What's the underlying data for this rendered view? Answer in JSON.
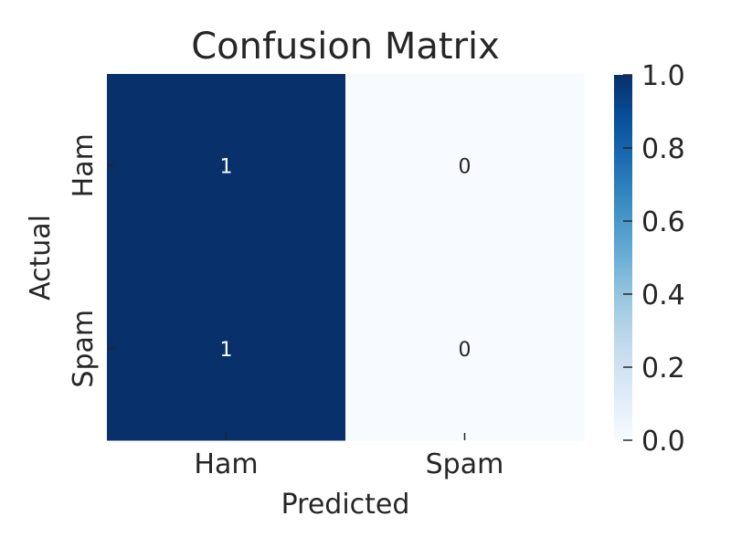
{
  "chart_data": {
    "type": "heatmap",
    "title": "Confusion Matrix",
    "xlabel": "Predicted",
    "ylabel": "Actual",
    "x_categories": [
      "Ham",
      "Spam"
    ],
    "y_categories": [
      "Ham",
      "Spam"
    ],
    "values": [
      [
        1,
        0
      ],
      [
        1,
        0
      ]
    ],
    "annotations": [
      [
        "1",
        "0"
      ],
      [
        "1",
        "0"
      ]
    ],
    "colormap": "Blues",
    "color_low": "#f7fbff",
    "color_high": "#08306b",
    "vmin": 0.0,
    "vmax": 1.0,
    "colorbar_ticks": [
      "0.0",
      "0.2",
      "0.4",
      "0.6",
      "0.8",
      "1.0"
    ],
    "text_color_dark_cell": "#ffffff",
    "text_color_light_cell": "#262626"
  }
}
